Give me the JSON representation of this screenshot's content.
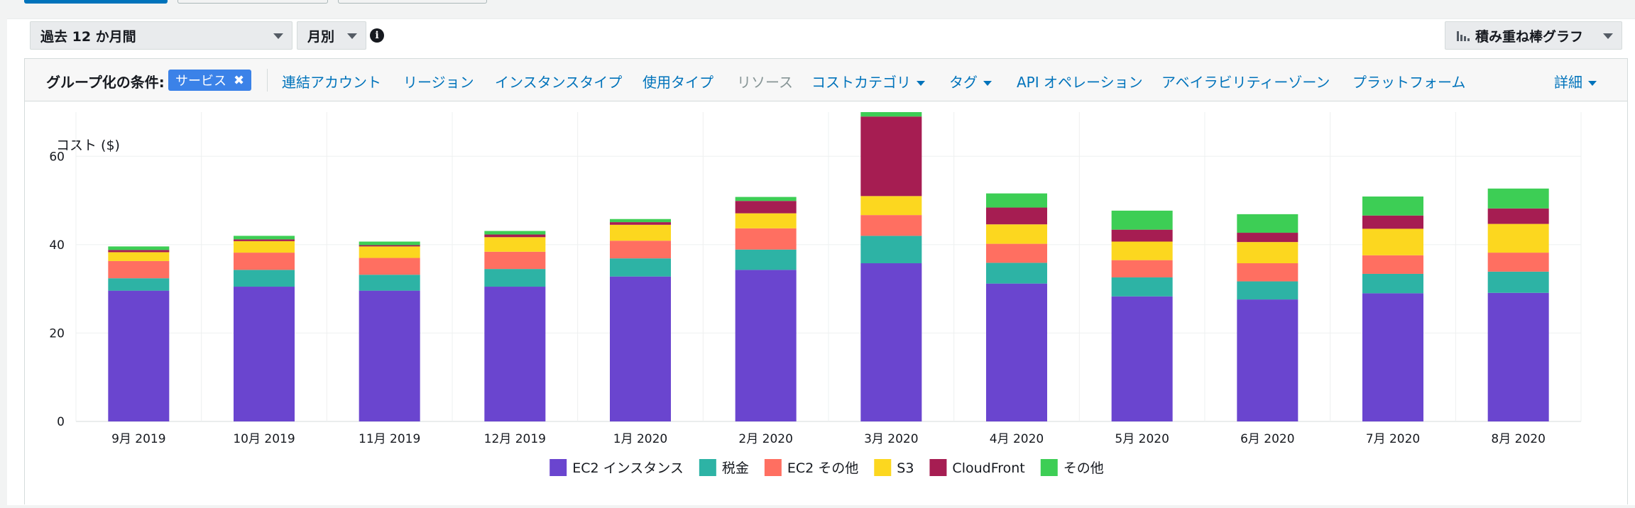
{
  "controls": {
    "period": "過去 12 か月間",
    "granularity": "月別",
    "chart_type": "積み重ね棒グラフ"
  },
  "group_by": {
    "label": "グループ化の条件:",
    "selected": "サービス",
    "options": [
      "連結アカウント",
      "リージョン",
      "インスタンスタイプ",
      "使用タイプ",
      "リソース",
      "コストカテゴリ",
      "タグ",
      "API オペレーション",
      "アベイラビリティーゾーン",
      "プラットフォーム"
    ],
    "more": "詳細"
  },
  "colors": {
    "primary": "#0073bb",
    "series": [
      "#6a45cf",
      "#2db3a5",
      "#ff6f61",
      "#fcd71f",
      "#a61d52",
      "#3dce55"
    ]
  },
  "chart_data": {
    "type": "bar",
    "stacked": true,
    "ylabel": "コスト ($)",
    "ylim": [
      0,
      70
    ],
    "yticks": [
      0,
      20,
      40,
      60
    ],
    "grid": true,
    "legend_position": "bottom",
    "categories": [
      "9月 2019",
      "10月 2019",
      "11月 2019",
      "12月 2019",
      "1月 2020",
      "2月 2020",
      "3月 2020",
      "4月 2020",
      "5月 2020",
      "6月 2020",
      "7月 2020",
      "8月 2020"
    ],
    "series": [
      {
        "name": "EC2 インスタンス",
        "values": [
          29.6,
          30.5,
          29.6,
          30.5,
          32.8,
          34.3,
          35.8,
          31.2,
          28.3,
          27.6,
          29.0,
          29.1
        ]
      },
      {
        "name": "税金",
        "values": [
          2.8,
          3.8,
          3.6,
          4.0,
          4.1,
          4.6,
          6.2,
          4.7,
          4.3,
          4.1,
          4.4,
          4.8
        ]
      },
      {
        "name": "EC2 その他",
        "values": [
          3.9,
          3.9,
          3.8,
          3.9,
          4.0,
          4.8,
          4.7,
          4.3,
          3.9,
          4.1,
          4.2,
          4.3
        ]
      },
      {
        "name": "S3",
        "values": [
          2.0,
          2.6,
          2.6,
          3.3,
          3.6,
          3.4,
          4.3,
          4.4,
          4.2,
          4.8,
          6.0,
          6.5
        ]
      },
      {
        "name": "CloudFront",
        "values": [
          0.5,
          0.4,
          0.3,
          0.6,
          0.6,
          2.8,
          18.0,
          3.8,
          2.7,
          2.1,
          3.0,
          3.5
        ]
      },
      {
        "name": "その他",
        "values": [
          0.8,
          0.8,
          0.8,
          0.8,
          0.7,
          0.9,
          1.0,
          3.2,
          4.3,
          4.2,
          4.3,
          4.5
        ]
      }
    ]
  }
}
